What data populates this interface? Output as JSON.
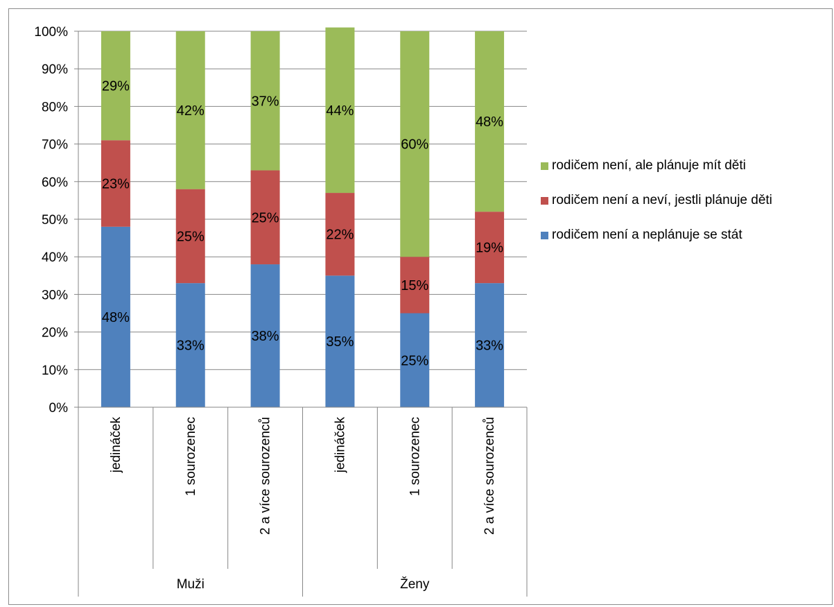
{
  "chart_data": {
    "type": "bar",
    "stacked": true,
    "groups": [
      {
        "name": "Muži",
        "categories": [
          "jedináček",
          "1 sourozenec",
          "2 a více sourozenců"
        ]
      },
      {
        "name": "Ženy",
        "categories": [
          "jedináček",
          "1 sourozenec",
          "2 a více sourozenců"
        ]
      }
    ],
    "categories": [
      "jedináček",
      "1 sourozenec",
      "2 a více sourozenců",
      "jedináček",
      "1 sourozenec",
      "2 a více sourozenců"
    ],
    "series": [
      {
        "name": "rodičem není a neplánuje se stát",
        "color": "#4f81bd",
        "values": [
          48,
          33,
          38,
          35,
          25,
          33
        ],
        "labels": [
          "48%",
          "33%",
          "38%",
          "35%",
          "25%",
          "33%"
        ]
      },
      {
        "name": "rodičem není a neví, jestli plánuje děti",
        "color": "#c0504d",
        "values": [
          23,
          25,
          25,
          22,
          15,
          19
        ],
        "labels": [
          "23%",
          "25%",
          "25%",
          "22%",
          "15%",
          "19%"
        ]
      },
      {
        "name": "rodičem není, ale plánuje mít děti",
        "color": "#9bbb59",
        "values": [
          29,
          42,
          37,
          44,
          60,
          48
        ],
        "labels": [
          "29%",
          "42%",
          "37%",
          "44%",
          "60%",
          "48%"
        ]
      }
    ],
    "legend_order": [
      2,
      1,
      0
    ],
    "yticks": [
      "0%",
      "10%",
      "20%",
      "30%",
      "40%",
      "50%",
      "60%",
      "70%",
      "80%",
      "90%",
      "100%"
    ],
    "ylim": [
      0,
      100
    ],
    "grid": true,
    "legend_position": "right",
    "title": "",
    "xlabel": "",
    "ylabel": ""
  }
}
